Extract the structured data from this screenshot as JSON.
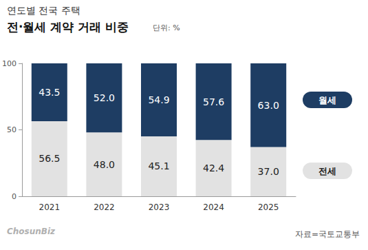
{
  "chart_data": {
    "type": "bar",
    "subtitle": "연도별 전국 주택",
    "title": "전·월세 계약 거래 비중",
    "unit": "단위: %",
    "source": "자료=국토교통부",
    "logo": "ChosunBiz",
    "categories": [
      "2021",
      "2022",
      "2023",
      "2024",
      "2025"
    ],
    "series": [
      {
        "name": "전세",
        "color": "#e2e2e2",
        "values": [
          56.5,
          48.0,
          45.1,
          42.4,
          37.0
        ],
        "value_labels": [
          "56.5",
          "48.0",
          "45.1",
          "42.4",
          "37.0"
        ]
      },
      {
        "name": "월세",
        "color": "#1e3d63",
        "values": [
          43.5,
          52.0,
          54.9,
          57.6,
          63.0
        ],
        "value_labels": [
          "43.5",
          "52.0",
          "54.9",
          "57.6",
          "63.0"
        ]
      }
    ],
    "stacked": true,
    "data_labels": true,
    "grid": false,
    "ylim": [
      0,
      100
    ],
    "yticks": [
      0,
      50,
      100
    ]
  }
}
